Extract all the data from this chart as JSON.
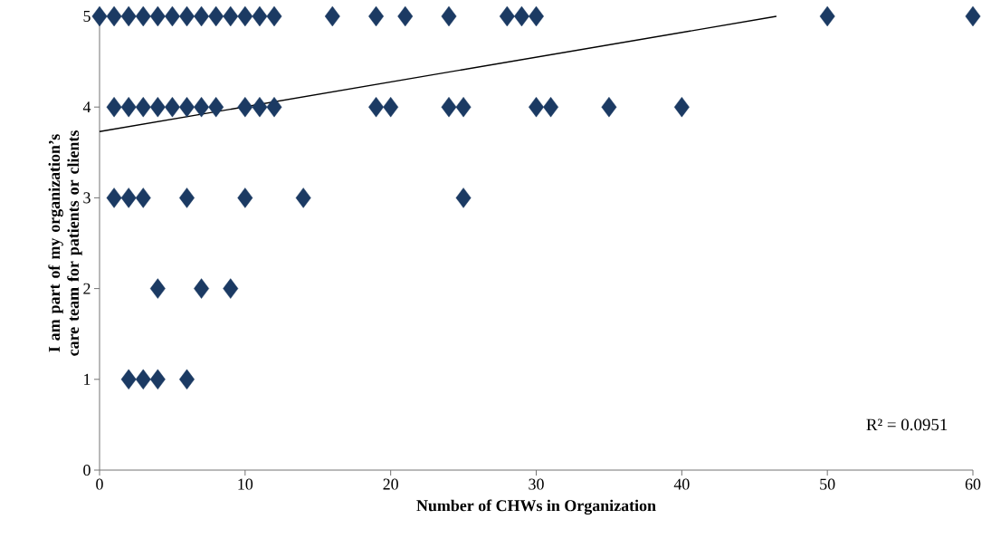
{
  "chart_data": {
    "type": "scatter",
    "xlabel": "Number of CHWs in Organization",
    "ylabel": "I am part of my organization’s care team for patients or clients",
    "xlim": [
      0,
      60
    ],
    "ylim": [
      0,
      5
    ],
    "xticks": [
      0,
      10,
      20,
      30,
      40,
      50,
      60
    ],
    "yticks": [
      0,
      1,
      2,
      3,
      4,
      5
    ],
    "marker": "diamond",
    "series": [
      {
        "color": "#1b3a63",
        "x": [
          0,
          1,
          2,
          3,
          4,
          5,
          6,
          7,
          8,
          9,
          10,
          11,
          12,
          16,
          19,
          21,
          24,
          28,
          29,
          30,
          50,
          60,
          1,
          2,
          3,
          4,
          5,
          6,
          7,
          8,
          10,
          11,
          12,
          19,
          20,
          24,
          25,
          30,
          31,
          35,
          40,
          1,
          2,
          3,
          6,
          10,
          14,
          25,
          4,
          7,
          9,
          2,
          3,
          4,
          6
        ],
        "values": [
          5,
          5,
          5,
          5,
          5,
          5,
          5,
          5,
          5,
          5,
          5,
          5,
          5,
          5,
          5,
          5,
          5,
          5,
          5,
          5,
          5,
          5,
          4,
          4,
          4,
          4,
          4,
          4,
          4,
          4,
          4,
          4,
          4,
          4,
          4,
          4,
          4,
          4,
          4,
          4,
          4,
          3,
          3,
          3,
          3,
          3,
          3,
          3,
          2,
          2,
          2,
          1,
          1,
          1,
          1
        ]
      },
      {
        "type": "line",
        "marker": "none",
        "color": "#000000",
        "x": [
          0,
          46.5
        ],
        "values": [
          3.73,
          5
        ]
      }
    ],
    "annotations": [
      "R² = 0.0951"
    ]
  }
}
